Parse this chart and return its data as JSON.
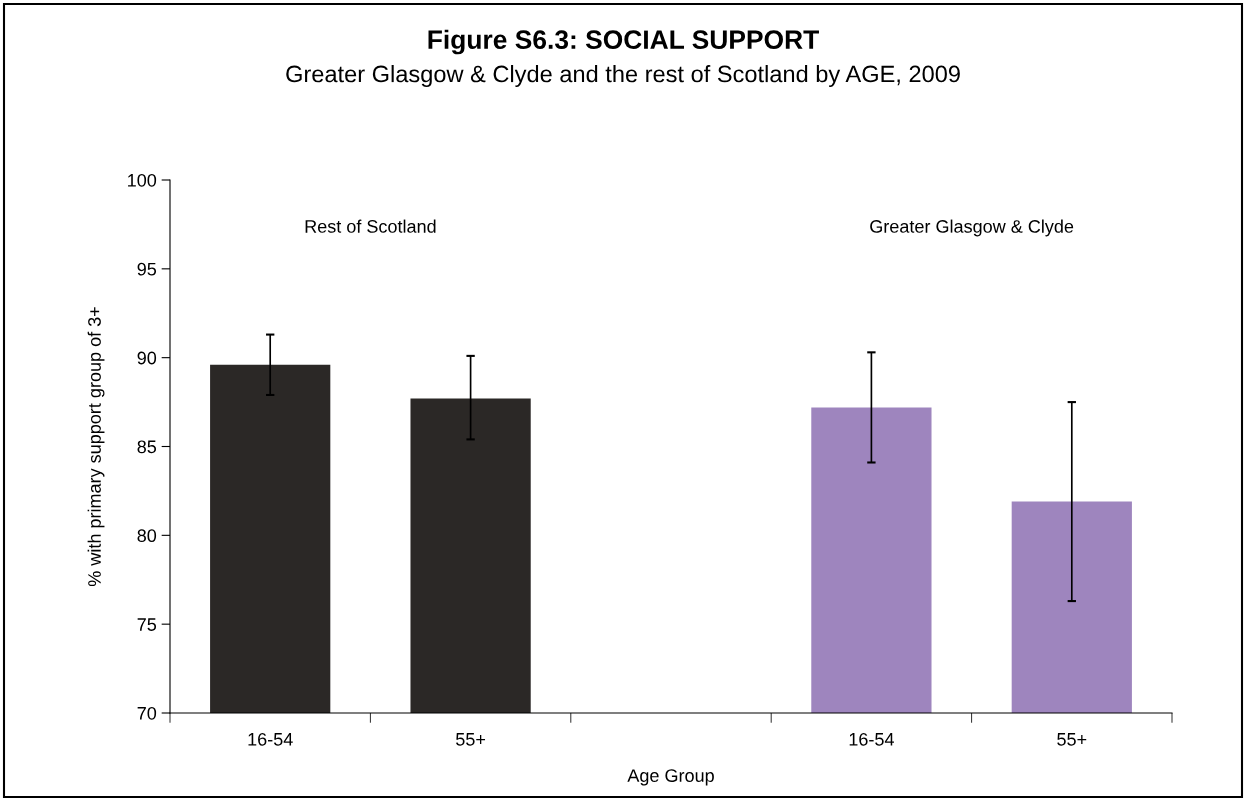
{
  "chart_data": {
    "type": "bar",
    "title": "Figure S6.3: SOCIAL SUPPORT",
    "subtitle": "Greater Glasgow & Clyde and the rest of Scotland by AGE, 2009",
    "xlabel": "Age Group",
    "ylabel": "% with primary support group of 3+",
    "categories": [
      "16-54",
      "55+",
      null,
      "16-54",
      "55+"
    ],
    "series": [
      {
        "color": "#2b2826",
        "values": [
          89.6,
          87.7,
          null,
          null,
          null
        ],
        "errors": [
          [
            87.9,
            91.3
          ],
          [
            85.4,
            90.1
          ],
          null,
          null,
          null
        ]
      },
      {
        "color": "#9e85be",
        "values": [
          null,
          null,
          null,
          87.2,
          81.9
        ],
        "errors": [
          null,
          null,
          null,
          [
            84.1,
            90.3
          ],
          [
            76.3,
            87.5
          ]
        ]
      }
    ],
    "annotations": [
      "Rest of Scotland",
      "Greater Glasgow & Clyde"
    ],
    "ylim": [
      70,
      100
    ],
    "yticks": [
      70,
      75,
      80,
      85,
      90,
      95,
      100
    ],
    "grid": false,
    "legend": false
  }
}
